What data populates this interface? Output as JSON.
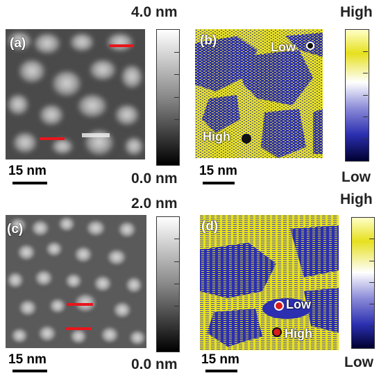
{
  "panels": {
    "a": {
      "label": "(a)",
      "scale_text": "15 nm",
      "colorbar_max": "4.0 nm",
      "colorbar_min": "0.0 nm"
    },
    "b": {
      "label": "(b)",
      "scale_text": "15 nm",
      "colorbar_max": "High",
      "colorbar_min": "Low",
      "marker_low": "Low",
      "marker_high": "High"
    },
    "c": {
      "label": "(c)",
      "scale_text": "15 nm",
      "colorbar_max": "2.0 nm",
      "colorbar_min": "0.0 nm"
    },
    "d": {
      "label": "(d)",
      "scale_text": "15 nm",
      "colorbar_max": "High",
      "colorbar_min": "Low",
      "marker_low": "Low",
      "marker_high": "High"
    }
  },
  "colors": {
    "highlight_line": "#e8161c",
    "map_blue": "#2b2fb0",
    "map_yellow": "#e6e01e",
    "marker_red": "#d81c1c"
  }
}
